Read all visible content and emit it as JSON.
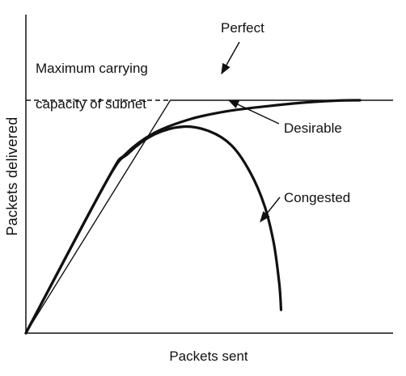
{
  "chart_data": {
    "type": "line",
    "title": "",
    "xlabel": "Packets sent",
    "ylabel": "Packets delivered",
    "xlim": [
      0,
      10
    ],
    "ylim": [
      0,
      10
    ],
    "grid": false,
    "legend": "none",
    "capacity": {
      "value": 7.5,
      "label_line1": "Maximum carrying",
      "label_line2": "capacity of subnet"
    },
    "series": [
      {
        "name": "Perfect",
        "x": [
          0,
          3.935,
          10
        ],
        "y": [
          0,
          7.5,
          7.5
        ]
      },
      {
        "name": "Desirable",
        "x": [
          0,
          2.2,
          2.7,
          3.5,
          4.5,
          5.5,
          6.5,
          7.5,
          8.5,
          9.1
        ],
        "y": [
          0,
          4.9,
          5.75,
          6.45,
          6.9,
          7.15,
          7.3,
          7.42,
          7.49,
          7.5
        ]
      },
      {
        "name": "Congested",
        "x": [
          0,
          2.2,
          2.8,
          3.5,
          4.3,
          5.0,
          5.6,
          6.1,
          6.5,
          6.75,
          6.9,
          6.95
        ],
        "y": [
          0,
          4.9,
          5.8,
          6.4,
          6.65,
          6.5,
          6.05,
          5.2,
          4.1,
          2.9,
          1.6,
          0.75
        ]
      }
    ]
  },
  "colors": {
    "line": "#111111",
    "background": "#ffffff"
  }
}
